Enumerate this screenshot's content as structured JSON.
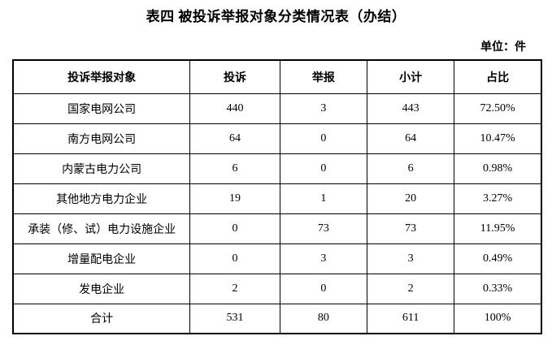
{
  "page": {
    "title": "表四 被投诉举报对象分类情况表（办结）",
    "unit_label": "单位：件"
  },
  "table": {
    "headers": [
      "投诉举报对象",
      "投诉",
      "举报",
      "小计",
      "占比"
    ],
    "rows": [
      [
        "国家电网公司",
        "440",
        "3",
        "443",
        "72.50%"
      ],
      [
        "南方电网公司",
        "64",
        "0",
        "64",
        "10.47%"
      ],
      [
        "内蒙古电力公司",
        "6",
        "0",
        "6",
        "0.98%"
      ],
      [
        "其他地方电力企业",
        "19",
        "1",
        "20",
        "3.27%"
      ],
      [
        "承装（修、试）电力设施企业",
        "0",
        "73",
        "73",
        "11.95%"
      ],
      [
        "增量配电企业",
        "0",
        "3",
        "3",
        "0.49%"
      ],
      [
        "发电企业",
        "2",
        "0",
        "2",
        "0.33%"
      ],
      [
        "合计",
        "531",
        "80",
        "611",
        "100%"
      ]
    ]
  },
  "colors": {
    "text": "#000000",
    "border": "#000000",
    "background": "#ffffff"
  }
}
